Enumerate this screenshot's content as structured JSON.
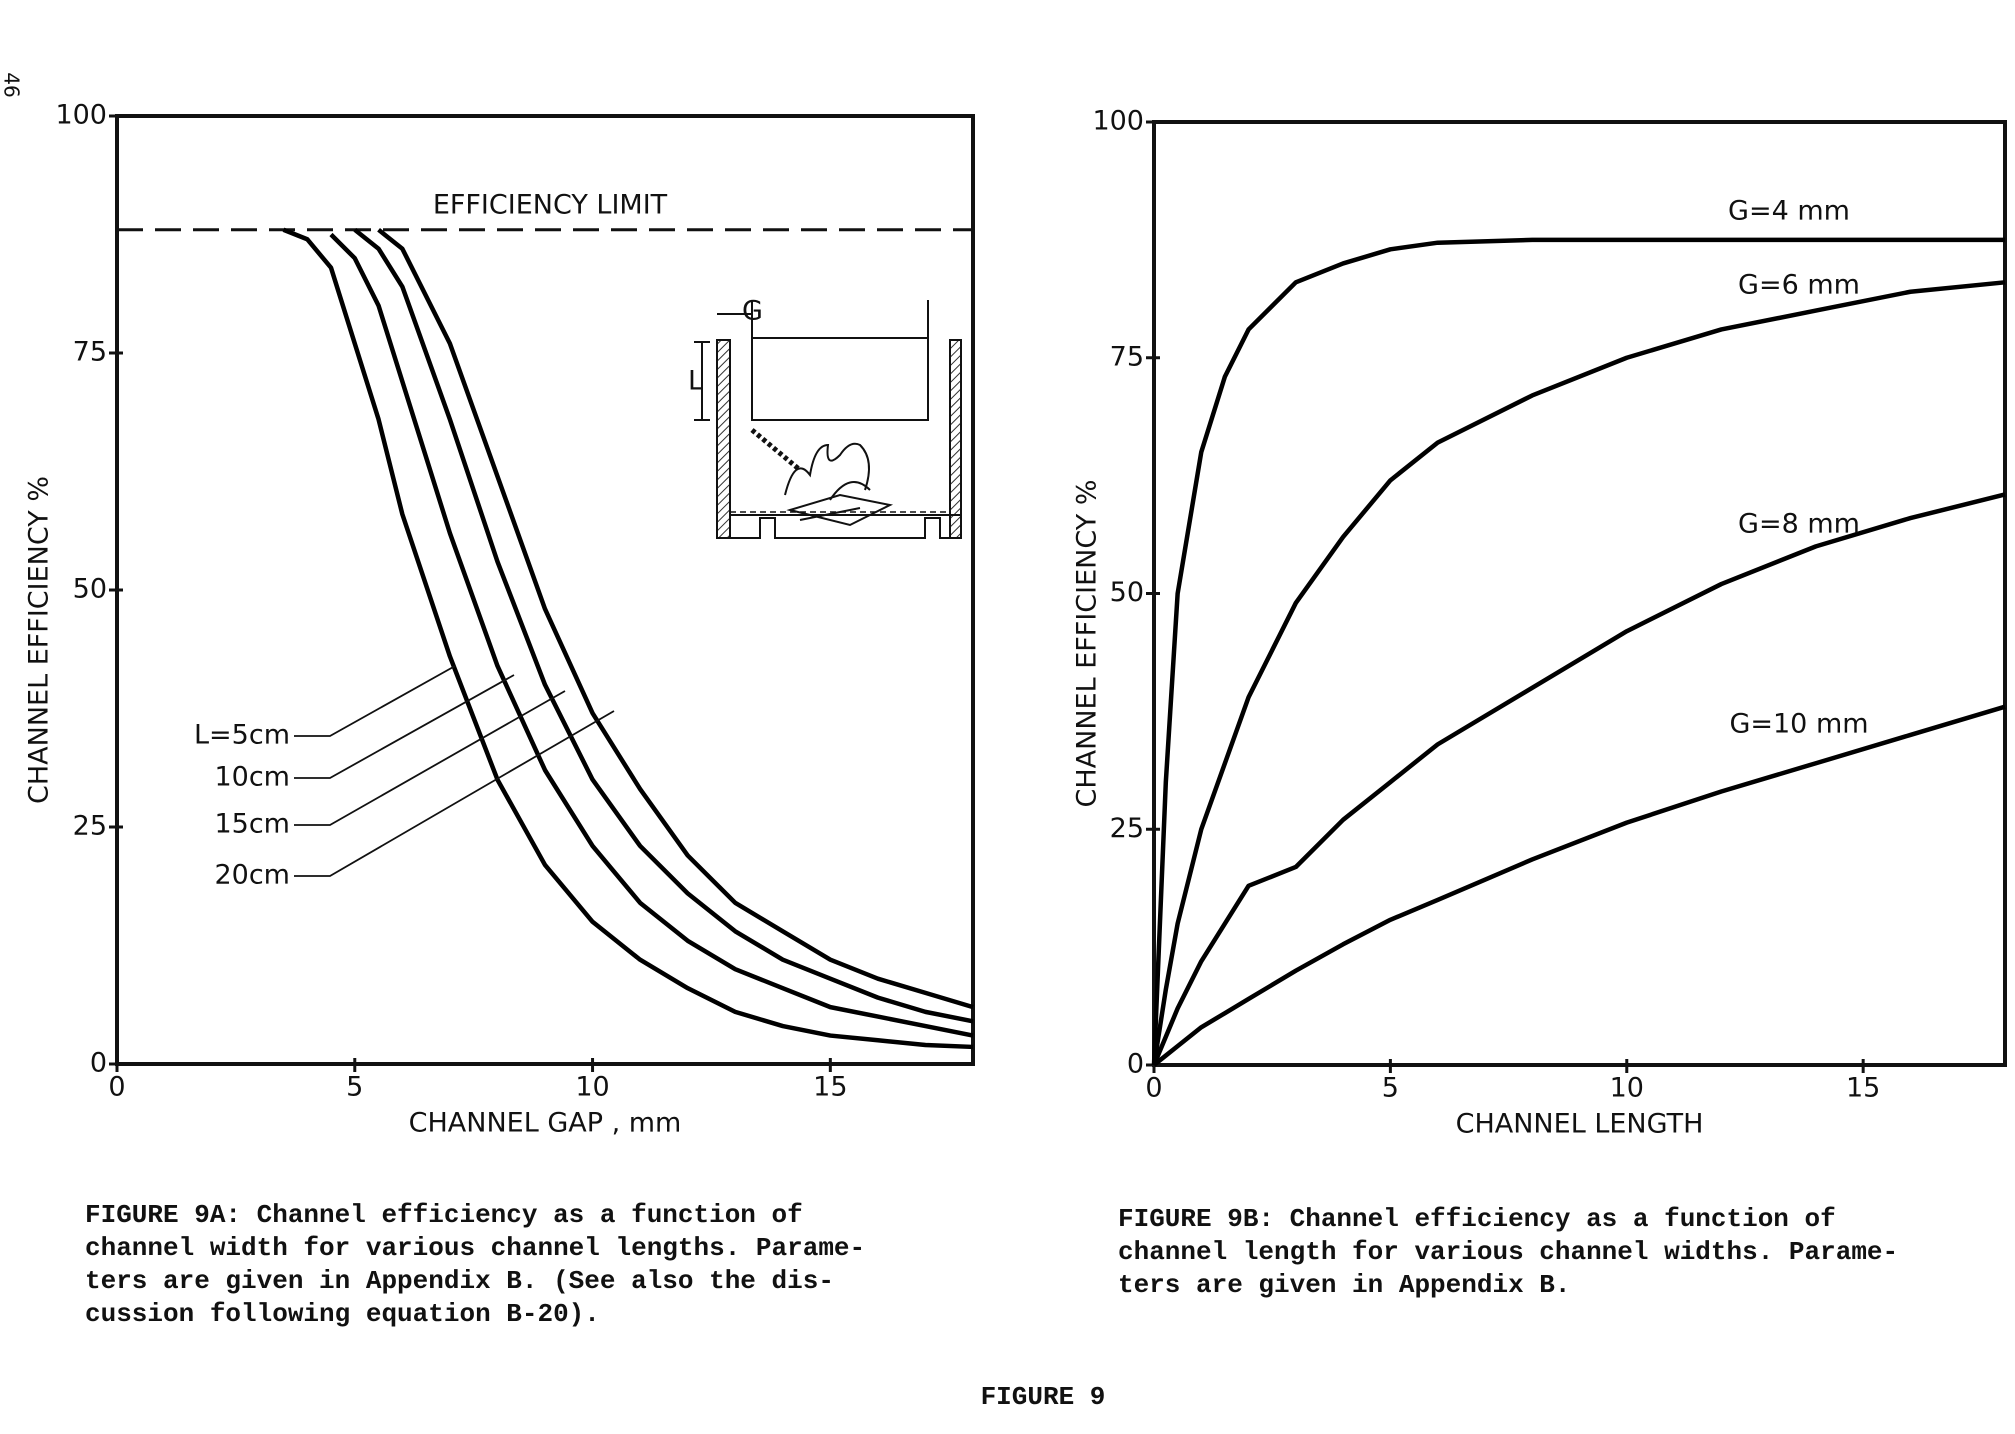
{
  "page_number": "46",
  "chart_data": [
    {
      "type": "line",
      "ylabel": "CHANNEL EFFICIENCY %",
      "xlabel": "CHANNEL GAP , mm",
      "xlim": [
        0,
        18
      ],
      "ylim": [
        0,
        100
      ],
      "xticks": [
        0,
        5,
        10,
        15
      ],
      "yticks": [
        0,
        25,
        50,
        75,
        100
      ],
      "limit": {
        "label": "EFFICIENCY LIMIT",
        "value": 88
      },
      "inset_labels": [
        "G",
        "L"
      ],
      "x": [
        3.5,
        4,
        4.5,
        5,
        5.5,
        6,
        7,
        8,
        9,
        10,
        11,
        12,
        13,
        14,
        15,
        16,
        17,
        18
      ],
      "series": [
        {
          "name": "L=5cm",
          "color": "#000000",
          "values": [
            88,
            87,
            84,
            76,
            68,
            58,
            43,
            30,
            21,
            15,
            11,
            8,
            5.5,
            4,
            3,
            2.5,
            2,
            1.8
          ]
        },
        {
          "name": "10cm",
          "color": "#000000",
          "values": [
            null,
            null,
            87.5,
            85,
            80,
            72,
            56,
            42,
            31,
            23,
            17,
            13,
            10,
            8,
            6,
            5,
            4,
            3
          ]
        },
        {
          "name": "15cm",
          "color": "#000000",
          "values": [
            null,
            null,
            null,
            88,
            86,
            82,
            68,
            53,
            40,
            30,
            23,
            18,
            14,
            11,
            9,
            7,
            5.5,
            4.5
          ]
        },
        {
          "name": "20cm",
          "color": "#000000",
          "values": [
            null,
            null,
            null,
            null,
            88,
            86,
            76,
            62,
            48,
            37,
            29,
            22,
            17,
            14,
            11,
            9,
            7.5,
            6
          ]
        }
      ],
      "caption": [
        "FIGURE 9A: Channel efficiency as a function of",
        "channel width for various channel lengths. Parame-",
        "ters are given in Appendix B. (See also the dis-",
        "cussion following equation B-20)."
      ]
    },
    {
      "type": "line",
      "ylabel": "CHANNEL EFFICIENCY %",
      "xlabel": "CHANNEL LENGTH",
      "xlim": [
        0,
        18
      ],
      "ylim": [
        0,
        100
      ],
      "xticks": [
        0,
        5,
        10,
        15
      ],
      "yticks": [
        0,
        25,
        50,
        75,
        100
      ],
      "x": [
        0,
        0.25,
        0.5,
        1,
        1.5,
        2,
        3,
        4,
        5,
        6,
        8,
        10,
        12,
        14,
        16,
        18
      ],
      "series": [
        {
          "name": "G=4 mm",
          "color": "#000000",
          "values": [
            0,
            30,
            50,
            65,
            73,
            78,
            83,
            85,
            86.5,
            87.2,
            87.5,
            87.5,
            87.5,
            87.5,
            87.5,
            87.5
          ]
        },
        {
          "name": "G=6 mm",
          "color": "#000000",
          "values": [
            0,
            8,
            15,
            25,
            32,
            39,
            49,
            56,
            62,
            66,
            71,
            75,
            78,
            80,
            82,
            83
          ]
        },
        {
          "name": "G=8 mm",
          "color": "#000000",
          "values": [
            0,
            3,
            6,
            11,
            15,
            19,
            21,
            26,
            30,
            34,
            40,
            46,
            51,
            55,
            58,
            60.5
          ]
        },
        {
          "name": "G=10 mm",
          "color": "#000000",
          "values": [
            0,
            1,
            2,
            4,
            5.5,
            7,
            10,
            12.8,
            15.4,
            17.5,
            21.8,
            25.7,
            29,
            32,
            35,
            38
          ]
        }
      ],
      "caption": [
        "FIGURE 9B: Channel efficiency as a function of",
        "channel length for various channel widths. Parame-",
        "ters are given in Appendix B."
      ]
    }
  ],
  "figure_title": "FIGURE 9"
}
